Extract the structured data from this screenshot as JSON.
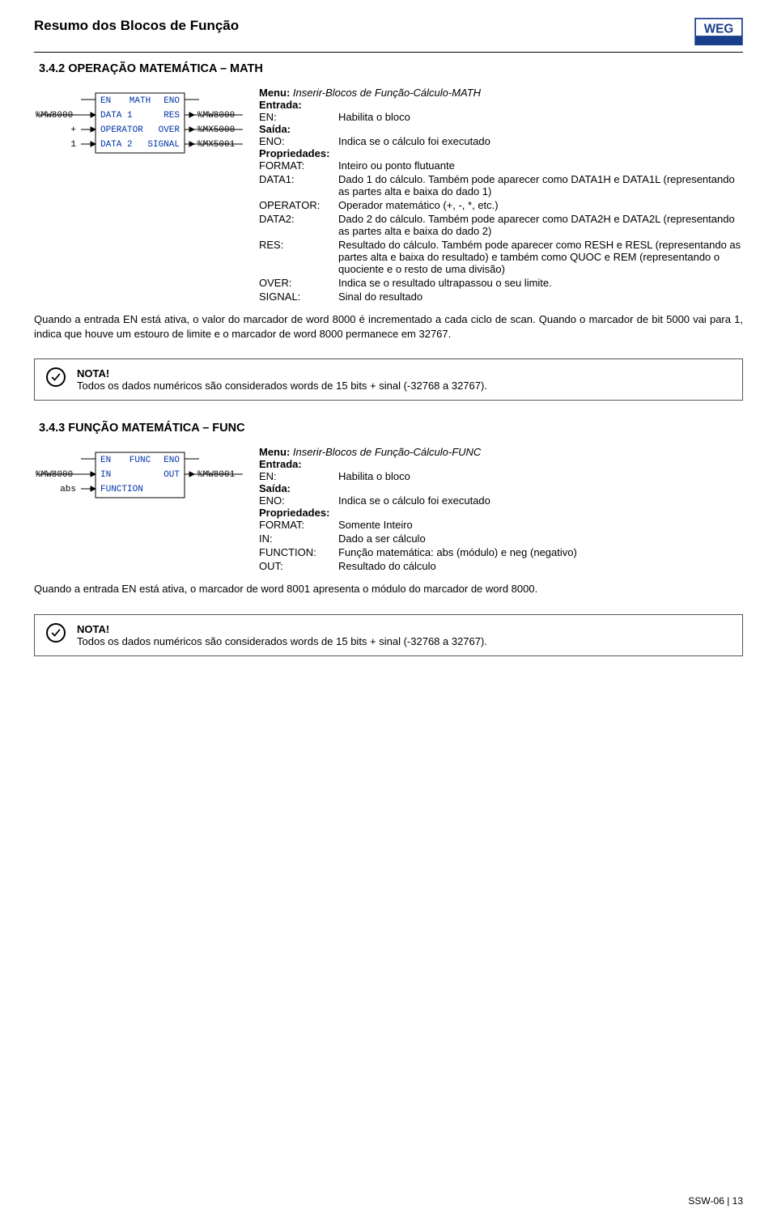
{
  "page": {
    "title": "Resumo dos Blocos de Função",
    "footer": "SSW-06 | 13"
  },
  "sec1": {
    "heading": "3.4.2 OPERAÇÃO MATEMÁTICA – MATH",
    "diagram": {
      "title": "MATH",
      "ports_left": [
        "EN",
        "DATA 1",
        "OPERATOR",
        "DATA 2"
      ],
      "ports_right": [
        "ENO",
        "RES",
        "OVER",
        "SIGNAL"
      ],
      "in_labels": [
        "",
        "%MW8000",
        "+",
        "1"
      ],
      "out_labels": [
        "",
        "%MW8000",
        "%MX5000",
        "%MX5001"
      ]
    },
    "menu_label": "Menu:",
    "menu_value": "Inserir-Blocos de Função-Cálculo-MATH",
    "entrada_label": "Entrada:",
    "saida_label": "Saída:",
    "props_label": "Propriedades:",
    "rows_in": [
      {
        "k": "EN:",
        "v": "Habilita o bloco"
      }
    ],
    "rows_out": [
      {
        "k": "ENO:",
        "v": "Indica se o cálculo foi executado"
      }
    ],
    "rows_props": [
      {
        "k": "FORMAT:",
        "v": "Inteiro ou ponto flutuante"
      },
      {
        "k": "DATA1:",
        "v": "Dado 1 do cálculo. Também pode aparecer como DATA1H e DATA1L (representando as partes alta e baixa do dado 1)"
      },
      {
        "k": "OPERATOR:",
        "v": "Operador matemático (+, -, *, etc.)"
      },
      {
        "k": "DATA2:",
        "v": "Dado 2 do cálculo. Também pode aparecer como DATA2H e DATA2L (representando as partes alta e baixa do dado 2)"
      },
      {
        "k": "RES:",
        "v": "Resultado do cálculo. Também pode aparecer como RESH e RESL (representando as partes alta e baixa do resultado) e também como QUOC e REM (representando o quociente e o resto de uma divisão)"
      },
      {
        "k": "OVER:",
        "v": "Indica se o resultado ultrapassou o seu limite."
      },
      {
        "k": "SIGNAL:",
        "v": "Sinal do resultado"
      }
    ],
    "paragraph": "Quando a entrada EN está ativa, o valor do marcador de word 8000 é incrementado a cada ciclo de scan. Quando o marcador de bit 5000 vai para 1, indica que houve um estouro de limite e o marcador de word 8000 permanece em 32767.",
    "note_title": "NOTA!",
    "note_body": "Todos os dados numéricos são considerados words de 15 bits + sinal (-32768 a 32767)."
  },
  "sec2": {
    "heading": "3.4.3 FUNÇÃO MATEMÁTICA – FUNC",
    "diagram": {
      "title": "FUNC",
      "ports_left": [
        "EN",
        "IN",
        "FUNCTION"
      ],
      "ports_right": [
        "ENO",
        "OUT",
        ""
      ],
      "in_labels": [
        "",
        "%MW8000",
        "abs"
      ],
      "out_labels": [
        "",
        "%MW8001",
        ""
      ]
    },
    "menu_label": "Menu:",
    "menu_value": "Inserir-Blocos de Função-Cálculo-FUNC",
    "entrada_label": "Entrada:",
    "saida_label": "Saída:",
    "props_label": "Propriedades:",
    "rows_in": [
      {
        "k": "EN:",
        "v": "Habilita o bloco"
      }
    ],
    "rows_out": [
      {
        "k": "ENO:",
        "v": "Indica se o cálculo foi executado"
      }
    ],
    "rows_props": [
      {
        "k": "FORMAT:",
        "v": "Somente Inteiro"
      },
      {
        "k": "IN:",
        "v": "Dado a ser cálculo"
      },
      {
        "k": "FUNCTION:",
        "v": "Função matemática: abs (módulo) e neg (negativo)"
      },
      {
        "k": "OUT:",
        "v": "Resultado do cálculo"
      }
    ],
    "paragraph": "Quando a entrada EN está ativa, o marcador de word 8001 apresenta o módulo do marcador de word 8000.",
    "note_title": "NOTA!",
    "note_body": "Todos os dados numéricos são considerados words de 15 bits + sinal (-32768 a 32767)."
  },
  "colors": {
    "text": "#000000",
    "blue": "#0033aa",
    "border": "#555555",
    "bg": "#ffffff"
  }
}
